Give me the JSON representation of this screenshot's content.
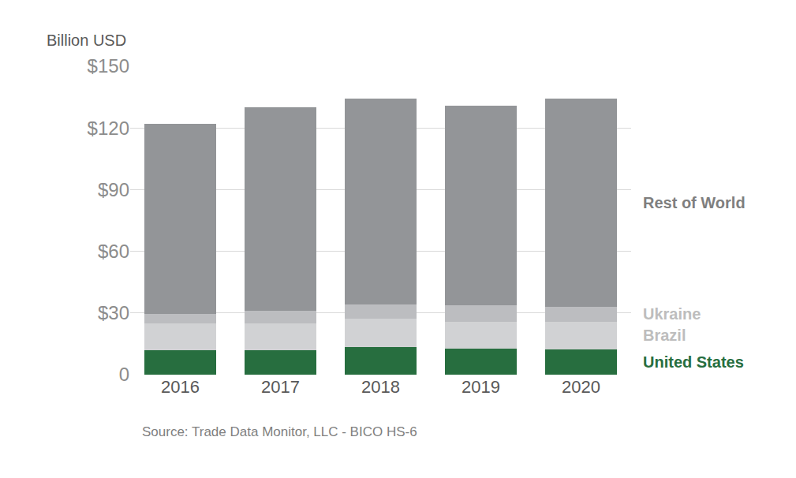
{
  "chart_data": {
    "type": "bar",
    "stacked": true,
    "grid": true,
    "y_label": "Billion USD",
    "source": "Source: Trade Data Monitor, LLC - BICO HS-6",
    "categories": [
      "2016",
      "2017",
      "2018",
      "2019",
      "2020"
    ],
    "series": [
      {
        "name": "United States",
        "color": "#276e3f",
        "values": [
          11.9,
          12.0,
          13.4,
          12.7,
          12.3
        ]
      },
      {
        "name": "Brazil",
        "color": "#d1d2d4",
        "values": [
          13.0,
          13.0,
          13.8,
          13.0,
          13.4
        ]
      },
      {
        "name": "Ukraine",
        "color": "#bcbdc0",
        "values": [
          4.5,
          6.0,
          6.9,
          8.1,
          7.3
        ]
      },
      {
        "name": "Rest of World",
        "color": "#939598",
        "values": [
          92.5,
          99.0,
          100.2,
          97.0,
          101.3
        ]
      }
    ],
    "ylim": [
      0,
      150
    ],
    "yticks": [
      0,
      {
        "value": 30,
        "label": "$30"
      },
      {
        "value": 60,
        "label": "$60"
      },
      {
        "value": 90,
        "label": "$90"
      },
      {
        "value": 120,
        "label": "$120"
      },
      {
        "value": 150,
        "label": "$150"
      }
    ]
  }
}
